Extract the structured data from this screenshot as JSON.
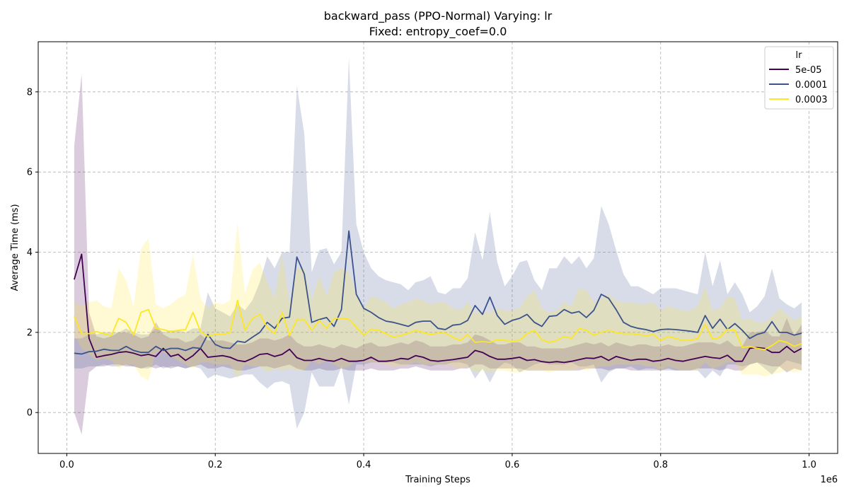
{
  "chart_data": {
    "type": "line",
    "title_line1": "backward_pass (PPO-Normal) Varying: lr",
    "title_line2": "Fixed: entropy_coef=0.0",
    "xlabel": "Training Steps",
    "ylabel": "Average Time (ms)",
    "x_offset_label": "1e6",
    "xlim": [
      -0.0385,
      1.0385
    ],
    "ylim": [
      -1.02,
      9.25
    ],
    "xticks": [
      0.0,
      0.2,
      0.4,
      0.6,
      0.8,
      1.0
    ],
    "xtick_labels": [
      "0.0",
      "0.2",
      "0.4",
      "0.6",
      "0.8",
      "1.0"
    ],
    "yticks": [
      0,
      2,
      4,
      6,
      8
    ],
    "ytick_labels": [
      "0",
      "2",
      "4",
      "6",
      "8"
    ],
    "grid": true,
    "legend": {
      "title": "lr",
      "position": "top-right"
    },
    "x": [
      0.01,
      0.02,
      0.03,
      0.04,
      0.05,
      0.06,
      0.07,
      0.08,
      0.09,
      0.1,
      0.11,
      0.12,
      0.13,
      0.14,
      0.15,
      0.16,
      0.17,
      0.18,
      0.19,
      0.2,
      0.21,
      0.22,
      0.23,
      0.24,
      0.25,
      0.26,
      0.27,
      0.28,
      0.29,
      0.3,
      0.31,
      0.32,
      0.33,
      0.34,
      0.35,
      0.36,
      0.37,
      0.38,
      0.39,
      0.4,
      0.41,
      0.42,
      0.43,
      0.44,
      0.45,
      0.46,
      0.47,
      0.48,
      0.49,
      0.5,
      0.51,
      0.52,
      0.53,
      0.54,
      0.55,
      0.56,
      0.57,
      0.58,
      0.59,
      0.6,
      0.61,
      0.62,
      0.63,
      0.64,
      0.65,
      0.66,
      0.67,
      0.68,
      0.69,
      0.7,
      0.71,
      0.72,
      0.73,
      0.74,
      0.75,
      0.76,
      0.77,
      0.78,
      0.79,
      0.8,
      0.81,
      0.82,
      0.83,
      0.84,
      0.85,
      0.86,
      0.87,
      0.88,
      0.89,
      0.9,
      0.91,
      0.92,
      0.93,
      0.94,
      0.95,
      0.96,
      0.97,
      0.98,
      0.99
    ],
    "series": [
      {
        "name": "5e-05",
        "color": "#440154",
        "mean": [
          3.32,
          3.95,
          1.85,
          1.38,
          1.42,
          1.45,
          1.5,
          1.52,
          1.48,
          1.42,
          1.45,
          1.4,
          1.6,
          1.4,
          1.45,
          1.3,
          1.42,
          1.6,
          1.38,
          1.4,
          1.42,
          1.38,
          1.3,
          1.27,
          1.35,
          1.45,
          1.47,
          1.4,
          1.45,
          1.58,
          1.37,
          1.3,
          1.3,
          1.35,
          1.3,
          1.28,
          1.35,
          1.28,
          1.28,
          1.3,
          1.38,
          1.28,
          1.28,
          1.3,
          1.35,
          1.33,
          1.42,
          1.38,
          1.3,
          1.28,
          1.3,
          1.32,
          1.35,
          1.38,
          1.55,
          1.5,
          1.4,
          1.33,
          1.33,
          1.35,
          1.38,
          1.3,
          1.32,
          1.27,
          1.25,
          1.27,
          1.25,
          1.28,
          1.32,
          1.36,
          1.35,
          1.4,
          1.3,
          1.4,
          1.35,
          1.3,
          1.33,
          1.33,
          1.28,
          1.3,
          1.35,
          1.3,
          1.28,
          1.32,
          1.36,
          1.4,
          1.37,
          1.35,
          1.43,
          1.28,
          1.28,
          1.6,
          1.62,
          1.6,
          1.5,
          1.5,
          1.65,
          1.5,
          1.6
        ],
        "upper": [
          6.65,
          8.45,
          2.5,
          1.9,
          1.85,
          1.9,
          2.0,
          2.0,
          1.95,
          1.85,
          1.9,
          2.25,
          1.95,
          1.85,
          1.85,
          1.75,
          1.8,
          1.95,
          1.8,
          1.8,
          1.8,
          1.75,
          1.7,
          1.7,
          1.75,
          1.85,
          1.85,
          1.8,
          1.85,
          1.95,
          1.75,
          1.65,
          1.65,
          1.7,
          1.65,
          1.6,
          1.7,
          1.65,
          1.6,
          1.7,
          1.75,
          1.65,
          1.65,
          1.7,
          1.75,
          1.7,
          1.8,
          1.75,
          1.65,
          1.65,
          1.65,
          1.7,
          1.7,
          1.75,
          1.95,
          1.9,
          1.8,
          1.7,
          1.7,
          1.75,
          1.75,
          1.65,
          1.65,
          1.6,
          1.6,
          1.6,
          1.6,
          1.65,
          1.7,
          1.75,
          1.7,
          1.75,
          1.65,
          1.75,
          1.7,
          1.65,
          1.7,
          1.7,
          1.65,
          1.65,
          1.7,
          1.65,
          1.65,
          1.7,
          1.75,
          1.75,
          1.75,
          1.7,
          1.8,
          1.65,
          1.65,
          2.0,
          2.0,
          2.05,
          1.9,
          1.9,
          2.35,
          1.9,
          2.2
        ],
        "lower": [
          0.0,
          -0.55,
          1.0,
          1.15,
          1.15,
          1.2,
          1.2,
          1.15,
          1.15,
          1.1,
          1.15,
          1.1,
          1.15,
          1.1,
          1.15,
          1.1,
          1.15,
          1.2,
          1.1,
          1.1,
          1.15,
          1.1,
          1.05,
          1.05,
          1.1,
          1.15,
          1.15,
          1.1,
          1.15,
          1.2,
          1.1,
          1.05,
          1.05,
          1.1,
          1.05,
          1.05,
          1.1,
          1.05,
          1.05,
          1.05,
          1.1,
          1.05,
          1.05,
          1.05,
          1.1,
          1.1,
          1.15,
          1.1,
          1.05,
          1.05,
          1.05,
          1.05,
          1.1,
          1.1,
          1.2,
          1.2,
          1.1,
          1.1,
          1.1,
          1.1,
          1.1,
          1.05,
          1.05,
          1.05,
          1.05,
          1.05,
          1.05,
          1.05,
          1.05,
          1.1,
          1.1,
          1.1,
          1.05,
          1.1,
          1.1,
          1.05,
          1.05,
          1.05,
          1.05,
          1.05,
          1.1,
          1.05,
          1.05,
          1.05,
          1.1,
          1.1,
          1.1,
          1.05,
          1.1,
          1.05,
          1.05,
          1.2,
          1.25,
          1.2,
          1.15,
          1.15,
          1.0,
          1.1,
          1.05
        ]
      },
      {
        "name": "0.0001",
        "color": "#3b528b",
        "mean": [
          1.48,
          1.46,
          1.52,
          1.53,
          1.58,
          1.55,
          1.55,
          1.65,
          1.55,
          1.5,
          1.5,
          1.65,
          1.55,
          1.6,
          1.6,
          1.55,
          1.62,
          1.6,
          1.95,
          1.7,
          1.62,
          1.6,
          1.78,
          1.75,
          1.88,
          2.0,
          2.25,
          2.1,
          2.35,
          2.38,
          3.88,
          3.45,
          2.25,
          2.32,
          2.37,
          2.15,
          2.57,
          4.53,
          2.95,
          2.6,
          2.5,
          2.37,
          2.28,
          2.25,
          2.2,
          2.15,
          2.25,
          2.28,
          2.28,
          2.1,
          2.07,
          2.18,
          2.2,
          2.3,
          2.67,
          2.45,
          2.88,
          2.42,
          2.2,
          2.3,
          2.35,
          2.45,
          2.25,
          2.15,
          2.4,
          2.42,
          2.57,
          2.48,
          2.52,
          2.37,
          2.55,
          2.95,
          2.85,
          2.57,
          2.25,
          2.15,
          2.1,
          2.07,
          2.02,
          2.07,
          2.08,
          2.07,
          2.05,
          2.03,
          2.0,
          2.42,
          2.1,
          2.33,
          2.07,
          2.22,
          2.05,
          1.85,
          1.95,
          2.0,
          2.27,
          2.0,
          2.0,
          1.93,
          1.98
        ],
        "upper": [
          1.85,
          1.85,
          1.95,
          1.95,
          2.0,
          2.0,
          2.0,
          2.1,
          2.0,
          1.95,
          1.95,
          2.1,
          2.0,
          2.05,
          2.05,
          2.0,
          2.1,
          2.1,
          3.0,
          2.6,
          2.5,
          2.4,
          2.7,
          2.55,
          2.8,
          3.25,
          3.9,
          3.6,
          4.0,
          4.0,
          8.15,
          6.95,
          3.5,
          4.05,
          4.1,
          3.7,
          4.0,
          8.85,
          4.7,
          4.0,
          3.6,
          3.4,
          3.3,
          3.25,
          3.2,
          3.05,
          3.25,
          3.3,
          3.4,
          3.0,
          2.95,
          3.1,
          3.1,
          3.35,
          4.5,
          3.8,
          5.0,
          3.75,
          3.15,
          3.4,
          3.75,
          3.8,
          3.3,
          3.05,
          3.6,
          3.6,
          3.9,
          3.7,
          3.9,
          3.6,
          3.85,
          5.15,
          4.7,
          4.05,
          3.45,
          3.15,
          3.15,
          3.05,
          2.95,
          3.1,
          3.1,
          3.1,
          3.05,
          3.0,
          2.95,
          4.0,
          3.15,
          3.8,
          2.95,
          3.25,
          2.95,
          2.5,
          2.65,
          2.9,
          3.6,
          2.85,
          2.7,
          2.6,
          2.75
        ],
        "lower": [
          1.1,
          1.1,
          1.15,
          1.15,
          1.2,
          1.15,
          1.15,
          1.2,
          1.15,
          1.1,
          1.1,
          1.2,
          1.1,
          1.15,
          1.15,
          1.1,
          1.15,
          1.1,
          0.85,
          0.95,
          0.9,
          0.85,
          0.9,
          0.95,
          0.95,
          0.75,
          0.6,
          0.75,
          0.78,
          0.7,
          -0.4,
          0.0,
          1.0,
          0.65,
          0.65,
          0.65,
          1.15,
          0.2,
          1.2,
          1.2,
          1.25,
          1.25,
          1.25,
          1.25,
          1.2,
          1.2,
          1.2,
          1.2,
          1.15,
          1.2,
          1.2,
          1.25,
          1.25,
          1.2,
          0.85,
          1.1,
          0.75,
          1.1,
          1.25,
          1.2,
          1.0,
          1.1,
          1.2,
          1.25,
          1.2,
          1.2,
          1.2,
          1.25,
          1.15,
          1.15,
          1.2,
          0.75,
          1.0,
          1.1,
          1.1,
          1.15,
          1.05,
          1.1,
          1.1,
          1.05,
          1.05,
          1.05,
          1.05,
          1.05,
          1.05,
          0.85,
          1.05,
          0.9,
          1.2,
          1.2,
          1.15,
          1.2,
          1.25,
          1.1,
          0.95,
          1.15,
          1.3,
          1.25,
          1.2
        ]
      },
      {
        "name": "0.0003",
        "color": "#fde725",
        "mean": [
          2.4,
          1.97,
          1.97,
          2.02,
          1.97,
          1.92,
          2.35,
          2.25,
          1.93,
          2.5,
          2.57,
          2.1,
          2.07,
          2.02,
          2.05,
          2.07,
          2.5,
          2.02,
          1.9,
          1.95,
          1.95,
          2.0,
          2.8,
          2.05,
          2.35,
          2.45,
          2.12,
          1.97,
          2.5,
          1.92,
          2.32,
          2.32,
          2.05,
          2.3,
          2.1,
          2.35,
          2.35,
          2.33,
          2.13,
          1.93,
          2.08,
          2.05,
          1.97,
          1.88,
          1.92,
          1.98,
          2.05,
          2.0,
          1.95,
          1.98,
          1.98,
          1.88,
          1.8,
          1.95,
          1.75,
          1.77,
          1.75,
          1.82,
          1.8,
          1.78,
          1.8,
          1.97,
          2.05,
          1.82,
          1.75,
          1.8,
          1.9,
          1.85,
          2.1,
          2.05,
          1.93,
          2.0,
          2.05,
          2.0,
          1.97,
          1.97,
          1.95,
          1.92,
          1.95,
          1.8,
          1.9,
          1.85,
          1.8,
          1.8,
          1.85,
          2.2,
          1.83,
          1.88,
          2.08,
          2.05,
          1.62,
          1.65,
          1.6,
          1.57,
          1.67,
          1.8,
          1.75,
          1.65,
          1.72
        ],
        "upper": [
          2.75,
          2.65,
          2.75,
          2.8,
          2.65,
          2.6,
          3.6,
          3.3,
          2.65,
          4.1,
          4.35,
          2.7,
          2.6,
          2.7,
          2.85,
          2.95,
          3.95,
          2.85,
          2.6,
          2.75,
          2.7,
          2.8,
          4.75,
          2.95,
          3.55,
          3.75,
          3.25,
          2.85,
          3.95,
          2.75,
          3.6,
          3.6,
          2.8,
          3.4,
          2.9,
          3.5,
          3.6,
          3.5,
          2.95,
          2.6,
          2.9,
          2.85,
          2.75,
          2.6,
          2.7,
          2.75,
          2.85,
          2.8,
          2.7,
          2.75,
          2.75,
          2.6,
          2.55,
          2.75,
          2.5,
          2.5,
          2.5,
          2.6,
          2.55,
          2.55,
          2.6,
          2.9,
          3.05,
          2.6,
          2.5,
          2.55,
          2.75,
          2.65,
          3.1,
          3.05,
          2.75,
          2.85,
          2.95,
          2.8,
          2.75,
          2.75,
          2.7,
          2.7,
          2.75,
          2.55,
          2.65,
          2.6,
          2.55,
          2.55,
          2.65,
          3.15,
          2.55,
          2.6,
          2.9,
          2.85,
          2.3,
          2.35,
          2.25,
          2.25,
          2.4,
          2.6,
          2.45,
          2.3,
          2.4
        ],
        "lower": [
          1.95,
          1.6,
          1.45,
          1.3,
          1.35,
          1.3,
          1.1,
          1.2,
          1.2,
          0.9,
          0.8,
          1.5,
          1.5,
          1.4,
          1.3,
          1.2,
          1.1,
          1.25,
          1.25,
          1.2,
          1.2,
          1.2,
          0.85,
          1.2,
          1.15,
          1.15,
          1.0,
          1.1,
          1.05,
          1.1,
          1.05,
          1.05,
          1.3,
          1.2,
          1.3,
          1.2,
          1.1,
          1.15,
          1.3,
          1.25,
          1.25,
          1.25,
          1.2,
          1.15,
          1.15,
          1.2,
          1.25,
          1.2,
          1.2,
          1.2,
          1.2,
          1.15,
          1.1,
          1.15,
          1.0,
          1.05,
          1.0,
          1.05,
          1.05,
          1.0,
          1.0,
          1.05,
          1.05,
          1.05,
          1.0,
          1.05,
          1.05,
          1.05,
          1.1,
          1.05,
          1.1,
          1.15,
          1.15,
          1.2,
          1.2,
          1.2,
          1.2,
          1.15,
          1.15,
          1.05,
          1.15,
          1.1,
          1.05,
          1.05,
          1.05,
          1.25,
          1.1,
          1.15,
          1.25,
          1.25,
          0.95,
          0.95,
          0.95,
          0.9,
          0.95,
          1.0,
          1.05,
          1.0,
          1.05
        ]
      }
    ]
  }
}
